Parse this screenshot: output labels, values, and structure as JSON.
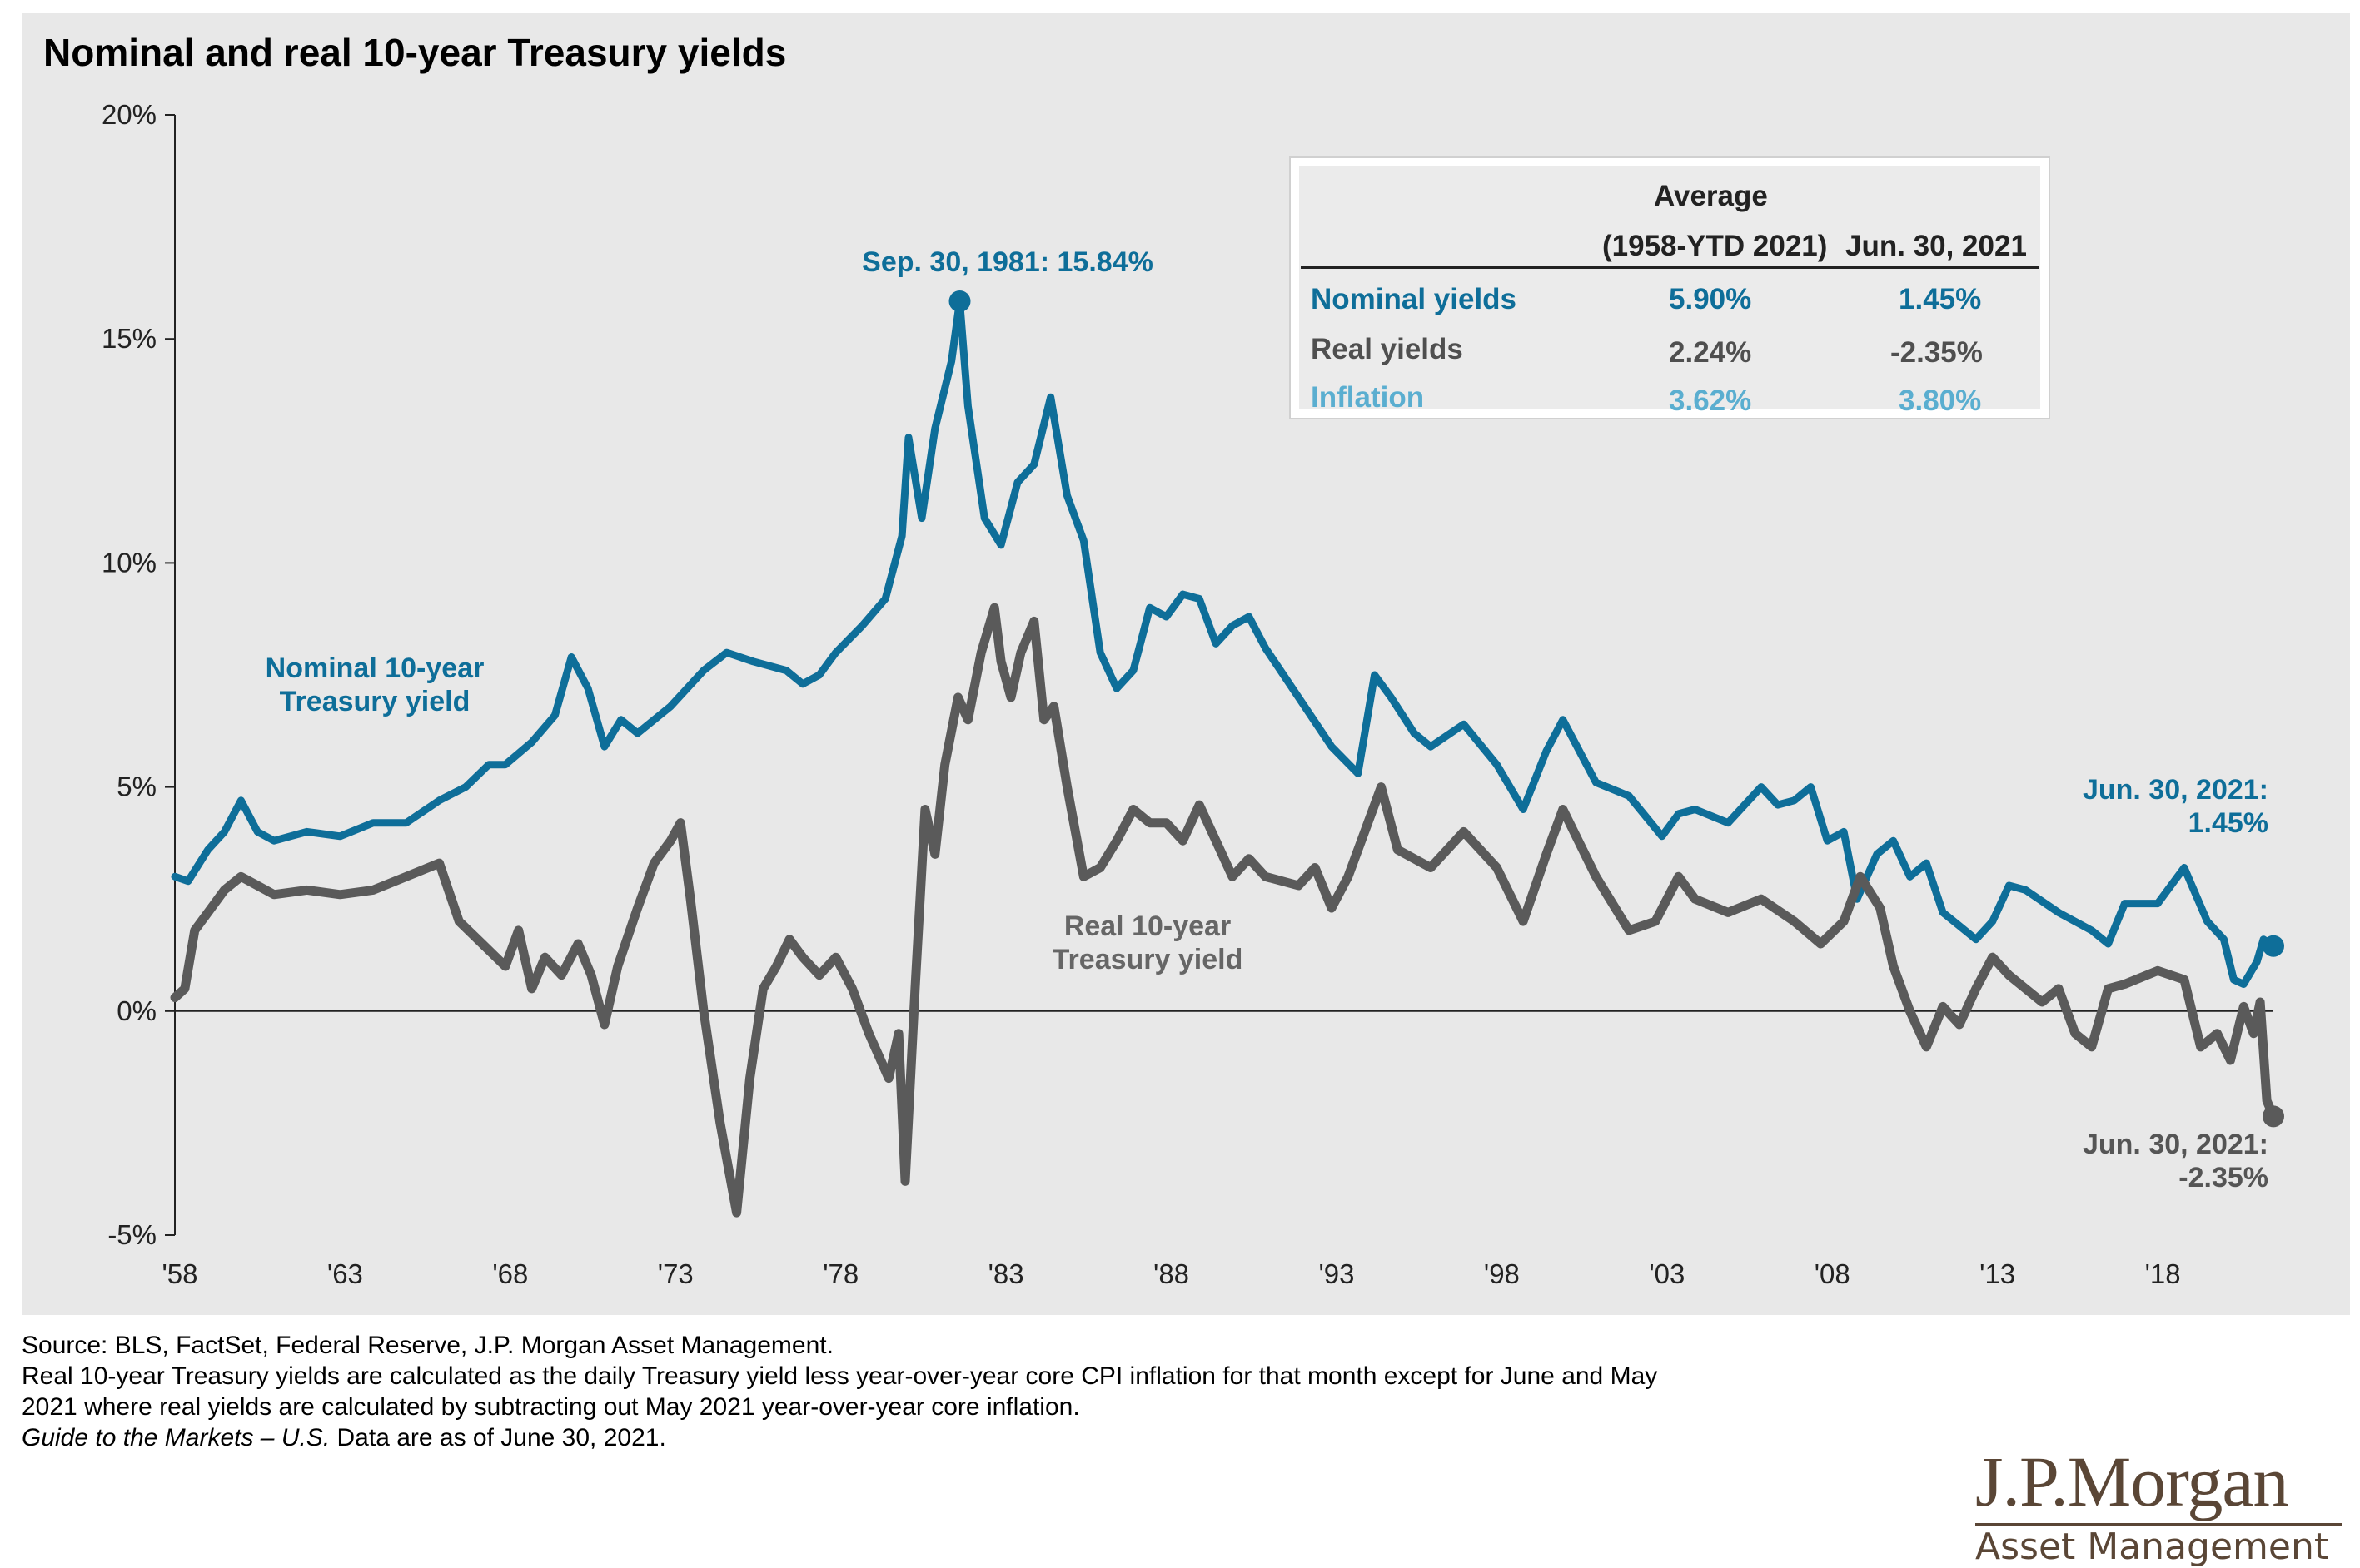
{
  "chart_data": {
    "type": "line",
    "title": "Nominal and real 10-year Treasury yields",
    "xlim": [
      1958,
      2021.5
    ],
    "ylim": [
      -5,
      20
    ],
    "x_ticks": [
      1958,
      1963,
      1968,
      1973,
      1978,
      1983,
      1988,
      1993,
      1998,
      2003,
      2008,
      2013,
      2018
    ],
    "x_tick_labels": [
      "'58",
      "'63",
      "'68",
      "'73",
      "'78",
      "'83",
      "'88",
      "'93",
      "'98",
      "'03",
      "'08",
      "'13",
      "'18"
    ],
    "y_ticks": [
      -5,
      0,
      5,
      10,
      15,
      20
    ],
    "y_tick_labels": [
      "-5%",
      "0%",
      "5%",
      "10%",
      "15%",
      "20%"
    ],
    "zero_line": true,
    "grid": false,
    "series": [
      {
        "name": "Nominal 10-year Treasury yield",
        "label_lines": [
          "Nominal 10-year",
          "Treasury yield"
        ],
        "color": "#0e6e99",
        "x": [
          1958.0,
          1958.4,
          1959.0,
          1959.5,
          1960.0,
          1960.5,
          1961.0,
          1962.0,
          1963.0,
          1964.0,
          1965.0,
          1966.0,
          1966.8,
          1967.5,
          1968.0,
          1968.8,
          1969.5,
          1970.0,
          1970.5,
          1971.0,
          1971.5,
          1972.0,
          1973.0,
          1974.0,
          1974.7,
          1975.5,
          1976.5,
          1977.0,
          1977.5,
          1978.0,
          1978.8,
          1979.5,
          1980.0,
          1980.2,
          1980.6,
          1981.0,
          1981.5,
          1981.75,
          1982.0,
          1982.5,
          1983.0,
          1983.5,
          1984.0,
          1984.5,
          1985.0,
          1985.5,
          1986.0,
          1986.5,
          1987.0,
          1987.5,
          1988.0,
          1988.5,
          1989.0,
          1989.5,
          1990.0,
          1990.5,
          1991.0,
          1992.0,
          1993.0,
          1993.8,
          1994.3,
          1994.8,
          1995.5,
          1996.0,
          1997.0,
          1998.0,
          1998.8,
          1999.5,
          2000.0,
          2001.0,
          2002.0,
          2003.0,
          2003.5,
          2004.0,
          2005.0,
          2006.0,
          2006.5,
          2007.0,
          2007.5,
          2008.0,
          2008.5,
          2008.9,
          2009.5,
          2010.0,
          2010.5,
          2011.0,
          2011.5,
          2012.0,
          2012.5,
          2013.0,
          2013.5,
          2014.0,
          2015.0,
          2016.0,
          2016.5,
          2017.0,
          2018.0,
          2018.8,
          2019.5,
          2020.0,
          2020.3,
          2020.6,
          2021.0,
          2021.2,
          2021.5
        ],
        "y": [
          3.0,
          2.9,
          3.6,
          4.0,
          4.7,
          4.0,
          3.8,
          4.0,
          3.9,
          4.2,
          4.2,
          4.7,
          5.0,
          5.5,
          5.5,
          6.0,
          6.6,
          7.9,
          7.2,
          5.9,
          6.5,
          6.2,
          6.8,
          7.6,
          8.0,
          7.8,
          7.6,
          7.3,
          7.5,
          8.0,
          8.6,
          9.2,
          10.6,
          12.8,
          11.0,
          13.0,
          14.5,
          15.84,
          13.5,
          11.0,
          10.4,
          11.8,
          12.2,
          13.7,
          11.5,
          10.5,
          8.0,
          7.2,
          7.6,
          9.0,
          8.8,
          9.3,
          9.2,
          8.2,
          8.6,
          8.8,
          8.1,
          7.0,
          5.9,
          5.3,
          7.5,
          7.0,
          6.2,
          5.9,
          6.4,
          5.5,
          4.5,
          5.8,
          6.5,
          5.1,
          4.8,
          3.9,
          4.4,
          4.5,
          4.2,
          5.0,
          4.6,
          4.7,
          5.0,
          3.8,
          4.0,
          2.5,
          3.5,
          3.8,
          3.0,
          3.3,
          2.2,
          1.9,
          1.6,
          2.0,
          2.8,
          2.7,
          2.2,
          1.8,
          1.5,
          2.4,
          2.4,
          3.2,
          2.0,
          1.6,
          0.7,
          0.6,
          1.1,
          1.6,
          1.45
        ]
      },
      {
        "name": "Real 10-year Treasury yield",
        "label_lines": [
          "Real 10-year",
          "Treasury yield"
        ],
        "color": "#5a5a5a",
        "x": [
          1958.0,
          1958.3,
          1958.6,
          1959.0,
          1959.5,
          1960.0,
          1960.5,
          1961.0,
          1962.0,
          1963.0,
          1964.0,
          1965.0,
          1966.0,
          1966.6,
          1967.3,
          1968.0,
          1968.4,
          1968.8,
          1969.2,
          1969.7,
          1970.2,
          1970.6,
          1971.0,
          1971.4,
          1972.0,
          1972.5,
          1973.0,
          1973.3,
          1973.6,
          1974.0,
          1974.5,
          1975.0,
          1975.4,
          1975.8,
          1976.2,
          1976.6,
          1977.0,
          1977.5,
          1978.0,
          1978.5,
          1979.0,
          1979.3,
          1979.6,
          1979.9,
          1980.1,
          1980.4,
          1980.7,
          1981.0,
          1981.3,
          1981.7,
          1982.0,
          1982.4,
          1982.8,
          1983.0,
          1983.3,
          1983.6,
          1984.0,
          1984.3,
          1984.6,
          1985.0,
          1985.5,
          1986.0,
          1986.5,
          1987.0,
          1987.5,
          1988.0,
          1988.5,
          1989.0,
          1989.5,
          1990.0,
          1990.5,
          1991.0,
          1992.0,
          1992.5,
          1993.0,
          1993.5,
          1994.0,
          1994.5,
          1995.0,
          1996.0,
          1997.0,
          1998.0,
          1998.8,
          1999.5,
          2000.0,
          2001.0,
          2002.0,
          2002.8,
          2003.5,
          2004.0,
          2005.0,
          2006.0,
          2007.0,
          2007.8,
          2008.5,
          2009.0,
          2009.6,
          2010.0,
          2010.5,
          2011.0,
          2011.5,
          2012.0,
          2012.5,
          2013.0,
          2013.5,
          2014.0,
          2014.5,
          2015.0,
          2015.5,
          2016.0,
          2016.5,
          2017.0,
          2018.0,
          2018.8,
          2019.3,
          2019.8,
          2020.2,
          2020.6,
          2020.9,
          2021.1,
          2021.3,
          2021.5
        ],
        "y": [
          0.3,
          0.5,
          1.8,
          2.2,
          2.7,
          3.0,
          2.8,
          2.6,
          2.7,
          2.6,
          2.7,
          3.0,
          3.3,
          2.0,
          1.5,
          1.0,
          1.8,
          0.5,
          1.2,
          0.8,
          1.5,
          0.8,
          -0.3,
          1.0,
          2.3,
          3.3,
          3.8,
          4.2,
          2.5,
          0.0,
          -2.5,
          -4.5,
          -1.5,
          0.5,
          1.0,
          1.6,
          1.2,
          0.8,
          1.2,
          0.5,
          -0.5,
          -1.0,
          -1.5,
          -0.5,
          -3.8,
          0.5,
          4.5,
          3.5,
          5.5,
          7.0,
          6.5,
          8.0,
          9.0,
          7.8,
          7.0,
          8.0,
          8.7,
          6.5,
          6.8,
          5.0,
          3.0,
          3.2,
          3.8,
          4.5,
          4.2,
          4.2,
          3.8,
          4.6,
          3.8,
          3.0,
          3.4,
          3.0,
          2.8,
          3.2,
          2.3,
          3.0,
          4.0,
          5.0,
          3.6,
          3.2,
          4.0,
          3.2,
          2.0,
          3.5,
          4.5,
          3.0,
          1.8,
          2.0,
          3.0,
          2.5,
          2.2,
          2.5,
          2.0,
          1.5,
          2.0,
          3.0,
          2.3,
          1.0,
          0.0,
          -0.8,
          0.1,
          -0.3,
          0.5,
          1.2,
          0.8,
          0.5,
          0.2,
          0.5,
          -0.5,
          -0.8,
          0.5,
          0.6,
          0.9,
          0.7,
          -0.8,
          -0.5,
          -1.1,
          0.1,
          -0.5,
          0.2,
          -2.0,
          -2.35
        ]
      }
    ],
    "annotations": [
      {
        "name": "peak",
        "text": "Sep. 30, 1981: 15.84%",
        "x": 1981.75,
        "y": 15.84
      },
      {
        "name": "nominal-end",
        "text_lines": [
          "Jun. 30, 2021:",
          "1.45%"
        ],
        "x": 2021.5,
        "y": 1.45
      },
      {
        "name": "real-end",
        "text_lines": [
          "Jun. 30, 2021:",
          "-2.35%"
        ],
        "x": 2021.5,
        "y": -2.35
      }
    ]
  },
  "table": {
    "header_average": "Average",
    "header_col1": "(1958-YTD 2021)",
    "header_col2": "Jun. 30, 2021",
    "rows": [
      {
        "label": "Nominal yields",
        "avg": "5.90%",
        "current": "1.45%"
      },
      {
        "label": "Real yields",
        "avg": "2.24%",
        "current": "-2.35%"
      },
      {
        "label": "Inflation",
        "avg": "3.62%",
        "current": "3.80%"
      }
    ]
  },
  "colors": {
    "nominal": "#0e6e99",
    "real": "#5a5a5a",
    "inflation": "#5aaed0",
    "panel": "#e8e8e8"
  },
  "footnotes": {
    "source": "Source: BLS, FactSet, Federal Reserve, J.P. Morgan Asset Management.",
    "note_line1": "Real 10-year Treasury yields are calculated as the daily Treasury yield less year-over-year core CPI inflation for that month except for June and May",
    "note_line2": "2021 where real yields are calculated by subtracting out May 2021 year-over-year core inflation.",
    "guide_italic": "Guide to the Markets – U.S.",
    "guide_rest": " Data are as of June 30, 2021."
  },
  "logo": {
    "name": "J.P.Morgan",
    "sub": "Asset Management"
  }
}
